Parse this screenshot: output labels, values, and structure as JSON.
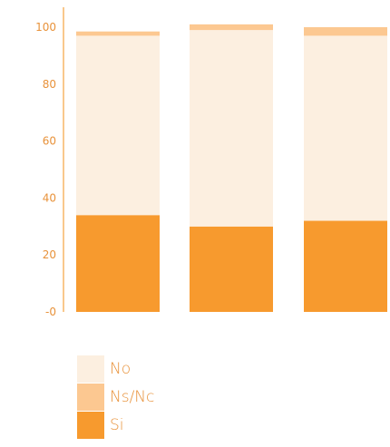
{
  "chart_data": {
    "type": "bar",
    "stacked": true,
    "categories": [
      "",
      "",
      ""
    ],
    "series": [
      {
        "name": "Si",
        "values": [
          34,
          30,
          32
        ],
        "color": "#f79a2e"
      },
      {
        "name": "No",
        "values": [
          63,
          69,
          65
        ],
        "color": "#fcefe0"
      },
      {
        "name": "Ns/Nc",
        "values": [
          1.5,
          2,
          3
        ],
        "color": "#fcc891"
      }
    ],
    "ylim": [
      0,
      100
    ],
    "yticks": [
      "-0",
      "20",
      "40",
      "60",
      "80",
      "100"
    ],
    "ytick_values": [
      0,
      20,
      40,
      60,
      80,
      100
    ],
    "axis_color": "#f7b666",
    "tick_color": "#e8923a",
    "legend": {
      "placement": "bottom-left",
      "items": [
        {
          "label": "No",
          "color": "#fcefe0"
        },
        {
          "label": "Ns/Nc",
          "color": "#fcc891"
        },
        {
          "label": "Si",
          "color": "#f79a2e"
        }
      ]
    }
  }
}
